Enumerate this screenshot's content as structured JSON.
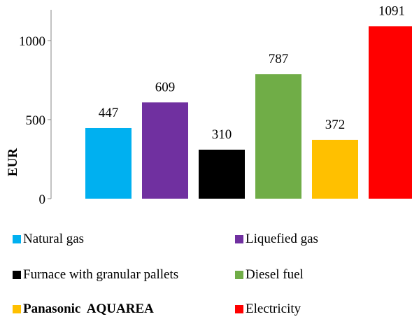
{
  "chart_data": {
    "type": "bar",
    "categories": [
      "Natural gas",
      "Liquefied gas",
      "Furnace with granular pallets",
      "Diesel fuel",
      "Panasonic  AQUAREA",
      "Electricity"
    ],
    "values": [
      447,
      609,
      310,
      787,
      372,
      1091
    ],
    "colors": [
      "#00b0f0",
      "#7030a0",
      "#000000",
      "#70ad47",
      "#ffc000",
      "#ff0000"
    ],
    "data_labels": [
      "447",
      "609",
      "310",
      "787",
      "372",
      "1091"
    ],
    "title": "",
    "xlabel": "",
    "ylabel": "EUR",
    "ylim": [
      0,
      1200
    ],
    "yticks": [
      0,
      500,
      1000
    ],
    "ytick_labels": [
      "0",
      "500",
      "1000"
    ],
    "grid": false,
    "legend": {
      "placement": "bottom",
      "columns": 2,
      "items": [
        {
          "label": "Natural gas",
          "color": "#00b0f0",
          "bold": false
        },
        {
          "label": "Liquefied gas",
          "color": "#7030a0",
          "bold": false
        },
        {
          "label": "Furnace with granular pallets",
          "color": "#000000",
          "bold": false
        },
        {
          "label": "Diesel fuel",
          "color": "#70ad47",
          "bold": false
        },
        {
          "label": "Panasonic  AQUAREA",
          "color": "#ffc000",
          "bold": true
        },
        {
          "label": "Electricity",
          "color": "#ff0000",
          "bold": false
        }
      ]
    }
  }
}
